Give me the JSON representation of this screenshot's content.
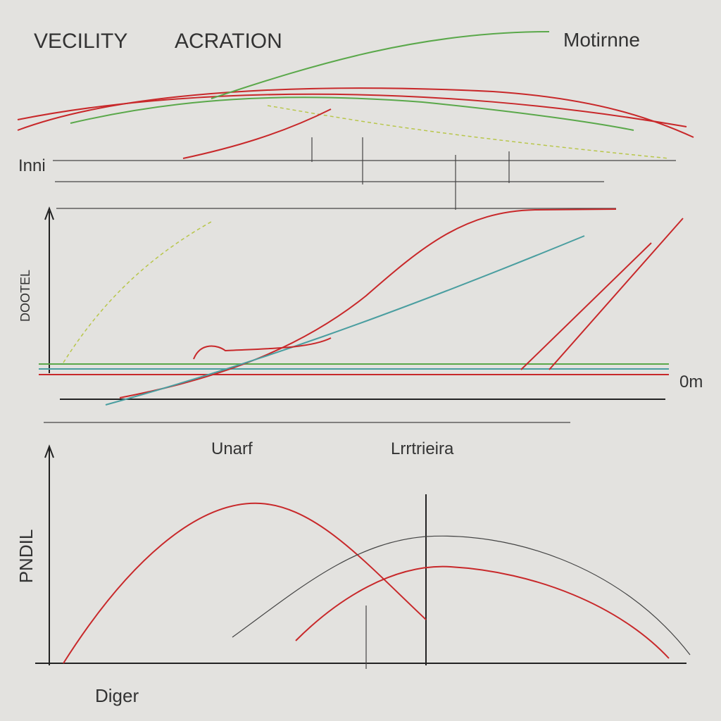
{
  "header": {
    "title_left": "VECILITY",
    "title_right": "ACRATION",
    "corner": "Motirnne"
  },
  "panels": [
    {
      "label": "Inni"
    },
    {
      "axis_label": "DOOTEL",
      "side_label": "0m"
    },
    {
      "axis_label": "PNDIL",
      "heading_left": "Unarf",
      "heading_right": "Lrrtrieira",
      "footer": "Diger"
    }
  ]
}
